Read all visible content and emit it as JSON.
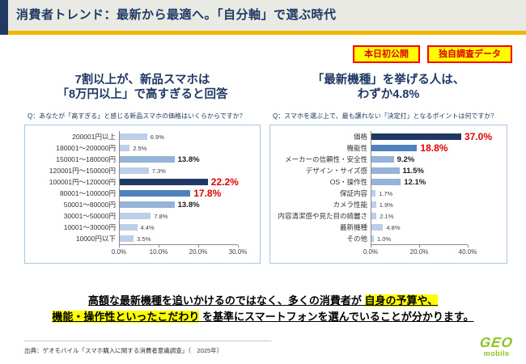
{
  "header": {
    "title": "消費者トレンド：最新から最適へ。「自分軸」で選ぶ時代"
  },
  "badges": [
    {
      "label": "本日初公開"
    },
    {
      "label": "独自調査データ"
    }
  ],
  "panels": {
    "left": {
      "headline1": "7割以上が、新品スマホは",
      "headline2": "「8万円以上」で高すぎると回答",
      "question": "Q：あなたが「高すぎる」と感じる新品スマホの価格はいくらからですか？"
    },
    "right": {
      "headline1": "「最新機種」を挙げる人は、",
      "headline2": "わずか4.8%",
      "question": "Q：スマホを選ぶ上で、最も譲れない「決定打」となるポイントは何ですか？"
    }
  },
  "chart_data": [
    {
      "type": "bar",
      "orientation": "horizontal",
      "title": "高すぎると感じる新品スマホの価格",
      "categories": [
        "200001円以上",
        "180001～200000円",
        "150001～180000円",
        "120001円～150000円",
        "100001円～120000円",
        "80001～100000円",
        "50001～80000円",
        "30001～50000円",
        "10001～30000円",
        "10000円以下"
      ],
      "values": [
        6.9,
        2.5,
        13.8,
        7.3,
        22.2,
        17.8,
        13.8,
        7.8,
        4.4,
        3.5
      ],
      "emphasis": [
        "normal",
        "normal",
        "mid",
        "normal",
        "max",
        "second",
        "mid",
        "normal",
        "normal",
        "normal"
      ],
      "xlim": [
        0,
        30
      ],
      "ticks": [
        {
          "label": "0.0%",
          "value": 0
        },
        {
          "label": "10.0%",
          "value": 10
        },
        {
          "label": "20.0%",
          "value": 20
        },
        {
          "label": "30.0%",
          "value": 30
        }
      ],
      "unit": "%"
    },
    {
      "type": "bar",
      "orientation": "horizontal",
      "title": "スマホを選ぶ上で最も譲れない決定打となるポイント",
      "categories": [
        "価格",
        "機能性",
        "メーカーの信頼性・安全性",
        "デザイン・サイズ感",
        "OS・操作性",
        "保証内容",
        "カメラ性能",
        "内容清潔感や見た目の綺麗さ",
        "最新機種",
        "その他"
      ],
      "values": [
        37.0,
        18.8,
        9.2,
        11.5,
        12.1,
        1.7,
        1.9,
        2.1,
        4.8,
        1.0
      ],
      "emphasis": [
        "max",
        "second",
        "mid",
        "mid",
        "mid",
        "normal",
        "normal",
        "normal",
        "normal",
        "normal"
      ],
      "xlim": [
        0,
        40
      ],
      "ticks": [
        {
          "label": "0.0%",
          "value": 0
        },
        {
          "label": "20.0%",
          "value": 20
        },
        {
          "label": "40.0%",
          "value": 40
        }
      ],
      "unit": "%"
    }
  ],
  "colors": {
    "accent_navy": "#1F3864",
    "gold_line": "#F2B705",
    "bar_dark": "#1F3864",
    "bar_medium": "#4E81BD",
    "bar_midlight": "#95B3D7",
    "bar_light": "#BDCFE8",
    "value_red": "#E00000",
    "badge_bg": "#FFFF00",
    "badge_border": "#FF0000",
    "highlight_yellow": "#FFFF00",
    "logo_green": "#8DC21F"
  },
  "conclusion": {
    "line1": [
      {
        "text": "高額な最新機種を追いかけるのではなく、多くの消費者が ",
        "highlight": false
      },
      {
        "text": "自身の予算や、",
        "highlight": true
      }
    ],
    "line2": [
      {
        "text": "機能・操作性といったこだわり",
        "highlight": true
      },
      {
        "text": " を基準にスマートフォンを選んでいることが分かります。",
        "highlight": false
      }
    ]
  },
  "source": "出典：ゲオモバイル「スマホ購入に関する消費者意識調査」（　2025年）",
  "logo": {
    "main": "GEO",
    "sub": "mobile"
  }
}
